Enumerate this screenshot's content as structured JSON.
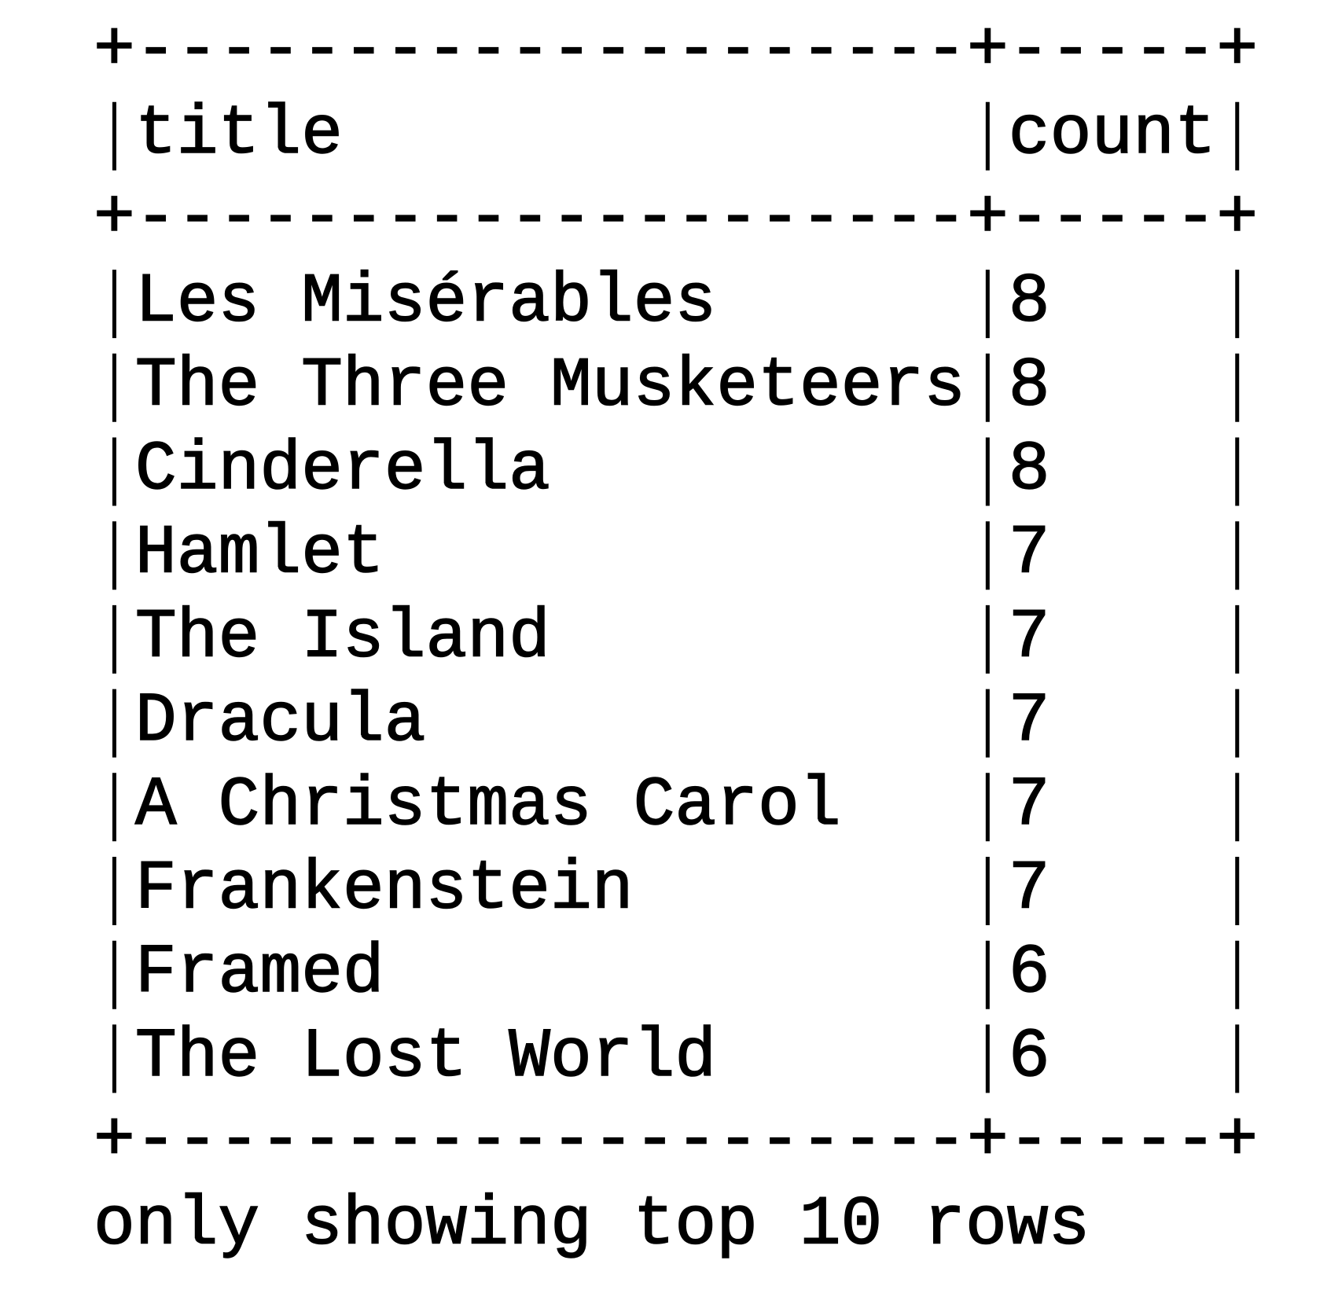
{
  "table": {
    "border": "+--------------------+-----+",
    "header": [
      "title",
      "count"
    ],
    "rows": [
      [
        "Les Misérables",
        8
      ],
      [
        "The Three Musketeers",
        8
      ],
      [
        "Cinderella",
        8
      ],
      [
        "Hamlet",
        7
      ],
      [
        "The Island",
        7
      ],
      [
        "Dracula",
        7
      ],
      [
        "A Christmas Carol",
        7
      ],
      [
        "Frankenstein",
        7
      ],
      [
        "Framed",
        6
      ],
      [
        "The Lost World",
        6
      ]
    ]
  },
  "footer": "only showing top 10 rows"
}
